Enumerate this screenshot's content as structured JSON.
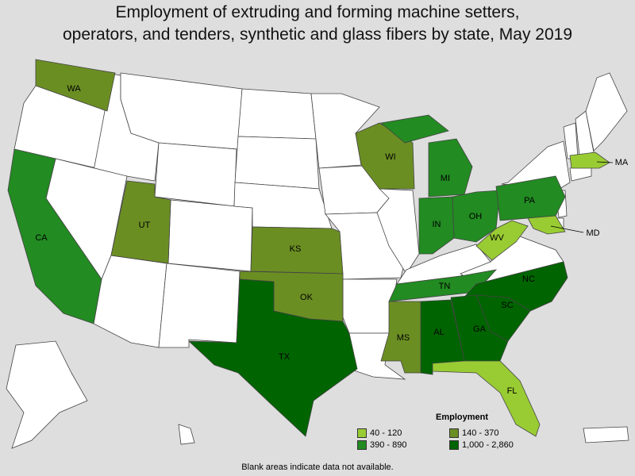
{
  "title_line1": "Employment of extruding and forming machine setters,",
  "title_line2": "operators, and tenders, synthetic and glass fibers by state, May 2019",
  "legend": {
    "title": "Employment",
    "items": [
      {
        "label": "40 - 120",
        "color": "#99cc33"
      },
      {
        "label": "140 - 370",
        "color": "#6b8e23"
      },
      {
        "label": "390 - 890",
        "color": "#228b22"
      },
      {
        "label": "1,000 - 2,860",
        "color": "#006400"
      }
    ]
  },
  "footnote": "Blank areas indicate data not available.",
  "states": {
    "WA": {
      "label": "WA",
      "range": "140 - 370"
    },
    "CA": {
      "label": "CA",
      "range": "390 - 890"
    },
    "UT": {
      "label": "UT",
      "range": "140 - 370"
    },
    "KS": {
      "label": "KS",
      "range": "140 - 370"
    },
    "OK": {
      "label": "OK",
      "range": "140 - 370"
    },
    "TX": {
      "label": "TX",
      "range": "1,000 - 2,860"
    },
    "WI": {
      "label": "WI",
      "range": "140 - 370"
    },
    "MI": {
      "label": "MI",
      "range": "390 - 890"
    },
    "IN": {
      "label": "IN",
      "range": "390 - 890"
    },
    "OH": {
      "label": "OH",
      "range": "390 - 890"
    },
    "PA": {
      "label": "PA",
      "range": "390 - 890"
    },
    "WV": {
      "label": "WV",
      "range": "40 - 120"
    },
    "MD": {
      "label": "MD",
      "range": "40 - 120"
    },
    "MA": {
      "label": "MA",
      "range": "40 - 120"
    },
    "TN": {
      "label": "TN",
      "range": "390 - 890"
    },
    "NC": {
      "label": "NC",
      "range": "1,000 - 2,860"
    },
    "SC": {
      "label": "SC",
      "range": "1,000 - 2,860"
    },
    "GA": {
      "label": "GA",
      "range": "1,000 - 2,860"
    },
    "AL": {
      "label": "AL",
      "range": "1,000 - 2,860"
    },
    "MS": {
      "label": "MS",
      "range": "140 - 370"
    },
    "FL": {
      "label": "FL",
      "range": "40 - 120"
    }
  }
}
